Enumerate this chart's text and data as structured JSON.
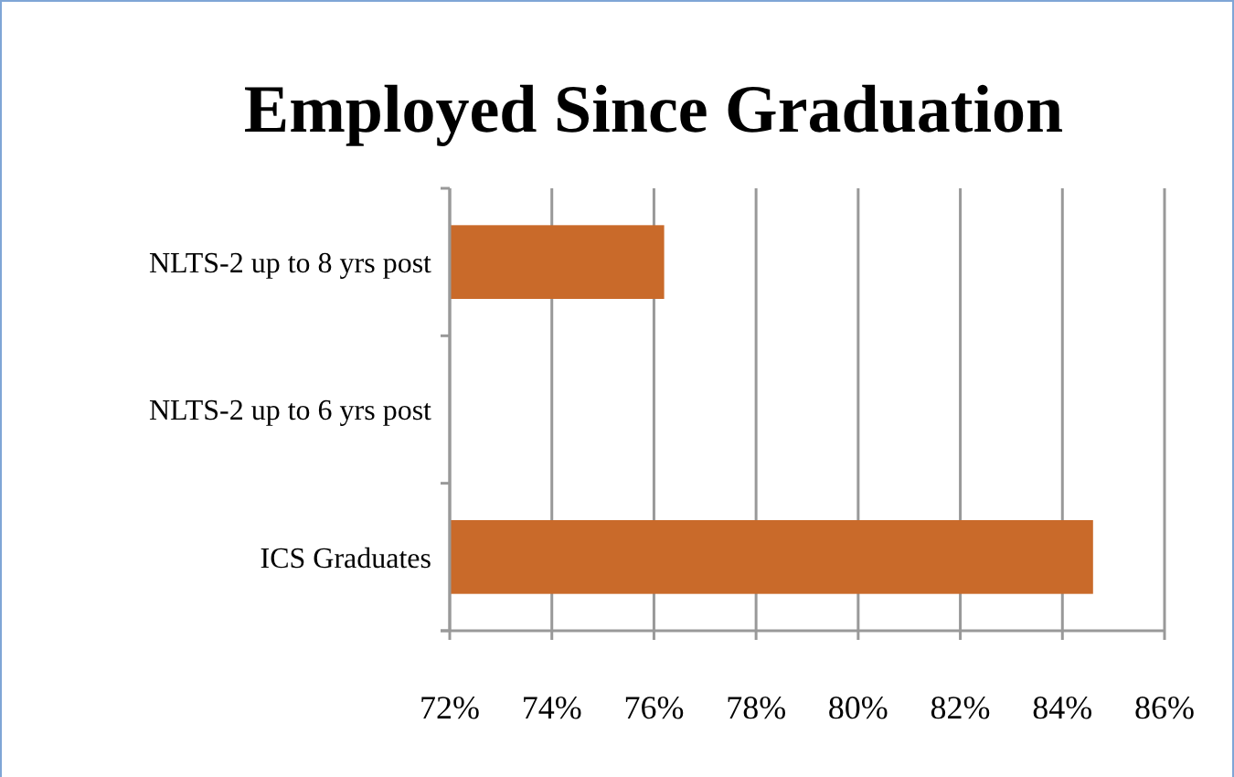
{
  "chart_data": {
    "type": "bar",
    "orientation": "horizontal",
    "title": "Employed Since Graduation",
    "categories": [
      "NLTS-2 up to 8 yrs post",
      "NLTS-2 up to 6 yrs post",
      "ICS Graduates"
    ],
    "values": [
      76.2,
      null,
      84.6
    ],
    "color": "#c96a2a",
    "xlim": [
      72,
      86
    ],
    "xticks": [
      {
        "value": 72,
        "label": "72%"
      },
      {
        "value": 74,
        "label": "74%"
      },
      {
        "value": 76,
        "label": "76%"
      },
      {
        "value": 78,
        "label": "78%"
      },
      {
        "value": 80,
        "label": "80%"
      },
      {
        "value": 82,
        "label": "82%"
      },
      {
        "value": 84,
        "label": "84%"
      },
      {
        "value": 86,
        "label": "86%"
      }
    ],
    "grid": "x"
  }
}
